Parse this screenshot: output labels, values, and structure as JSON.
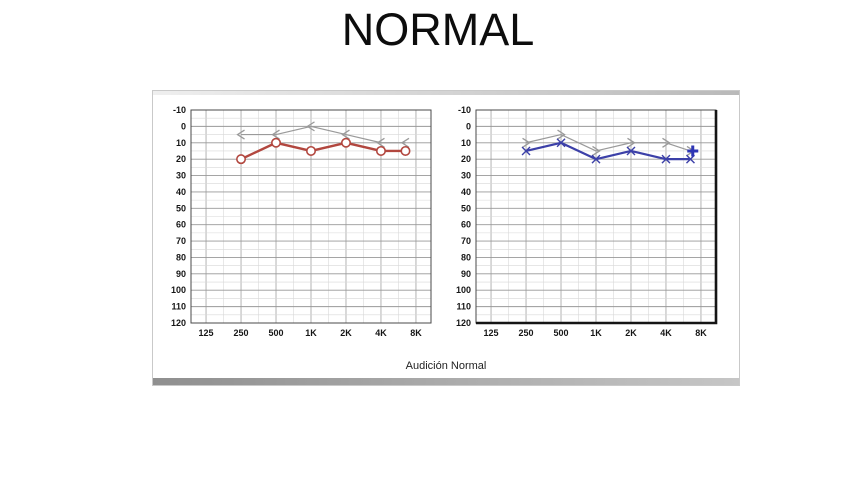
{
  "slide": {
    "title": "NORMAL",
    "caption": "Audición Normal"
  },
  "colors": {
    "background": "#ffffff",
    "panel_border": "#c9c9c9",
    "grid_minor": "#d8d8d8",
    "grid_major_h": "#989898",
    "grid_major_v": "#ababab",
    "frame": "#4a4a4a",
    "frame_thick": "#151515",
    "axis_text": "#161616",
    "red_series": "#b2473f",
    "blue_series": "#3c40a8",
    "gray_series": "#9a9a9a",
    "plus_marker": "#2e35b5"
  },
  "chart_data": [
    {
      "type": "line",
      "name": "right-ear-audiogram",
      "x_unit": "Hz",
      "y_unit": "dB HL",
      "x_ticklabels": [
        "125",
        "250",
        "500",
        "1K",
        "2K",
        "4K",
        "8K"
      ],
      "x_tick_freqs": [
        125,
        250,
        500,
        1000,
        2000,
        4000,
        8000
      ],
      "y_ticks": [
        -10,
        0,
        10,
        20,
        30,
        40,
        50,
        60,
        70,
        80,
        90,
        100,
        110,
        120
      ],
      "ylim": [
        -10,
        120
      ],
      "grid": "major+minor",
      "frame": "thin",
      "legend": "none",
      "series": [
        {
          "name": "bone-conduction-right",
          "symbol": "<",
          "color": "#9a9a9a",
          "line_width": 1.2,
          "x": [
            250,
            500,
            1000,
            2000,
            4000,
            6500
          ],
          "y": [
            5,
            5,
            0,
            5,
            10,
            10
          ]
        },
        {
          "name": "air-conduction-right",
          "symbol": "O",
          "color": "#b2473f",
          "line_width": 2.4,
          "x": [
            250,
            500,
            1000,
            2000,
            4000,
            6500
          ],
          "y": [
            20,
            10,
            15,
            10,
            15,
            15
          ]
        }
      ],
      "annotations": []
    },
    {
      "type": "line",
      "name": "left-ear-audiogram",
      "x_unit": "Hz",
      "y_unit": "dB HL",
      "x_ticklabels": [
        "125",
        "250",
        "500",
        "1K",
        "2K",
        "4K",
        "8K"
      ],
      "x_tick_freqs": [
        125,
        250,
        500,
        1000,
        2000,
        4000,
        8000
      ],
      "y_ticks": [
        -10,
        0,
        10,
        20,
        30,
        40,
        50,
        60,
        70,
        80,
        90,
        100,
        110,
        120
      ],
      "ylim": [
        -10,
        120
      ],
      "grid": "major+minor",
      "frame": "thick-right-bottom",
      "legend": "none",
      "series": [
        {
          "name": "bone-conduction-left",
          "symbol": ">",
          "color": "#9a9a9a",
          "line_width": 1.2,
          "x": [
            250,
            500,
            1000,
            2000,
            4000,
            6500
          ],
          "y": [
            10,
            5,
            15,
            10,
            10,
            15
          ]
        },
        {
          "name": "air-conduction-left",
          "symbol": "X",
          "color": "#3c40a8",
          "line_width": 2.2,
          "x": [
            250,
            500,
            1000,
            2000,
            4000,
            6500
          ],
          "y": [
            15,
            10,
            20,
            15,
            20,
            20
          ]
        }
      ],
      "annotations": [
        {
          "name": "plus-marker",
          "symbol": "+",
          "x": 6800,
          "y": 15,
          "color": "#2e35b5"
        }
      ]
    }
  ]
}
